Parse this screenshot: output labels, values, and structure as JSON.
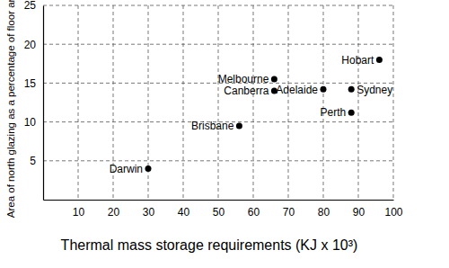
{
  "chart_data": {
    "type": "scatter",
    "x_label": "Thermal mass storage requirements (KJ x 10³)",
    "y_label": "Area of north glazing as a percentage of floor area",
    "labels": [
      "Darwin",
      "Brisbane",
      "Melbourne",
      "Canberra",
      "Adelaide",
      "Sydney",
      "Perth",
      "Hobart"
    ],
    "x": [
      30,
      56,
      66,
      66,
      80,
      88,
      88,
      96
    ],
    "values": [
      4,
      9.5,
      15.5,
      14,
      14.2,
      14.2,
      11.2,
      18
    ],
    "color": "#000000",
    "marker": "circle",
    "xlim": [
      0,
      100
    ],
    "xticks": [
      10,
      20,
      30,
      40,
      50,
      60,
      70,
      80,
      90,
      100
    ],
    "ylim": [
      0,
      25
    ],
    "yticks": [
      5,
      10,
      15,
      20,
      25
    ],
    "grid": true
  }
}
